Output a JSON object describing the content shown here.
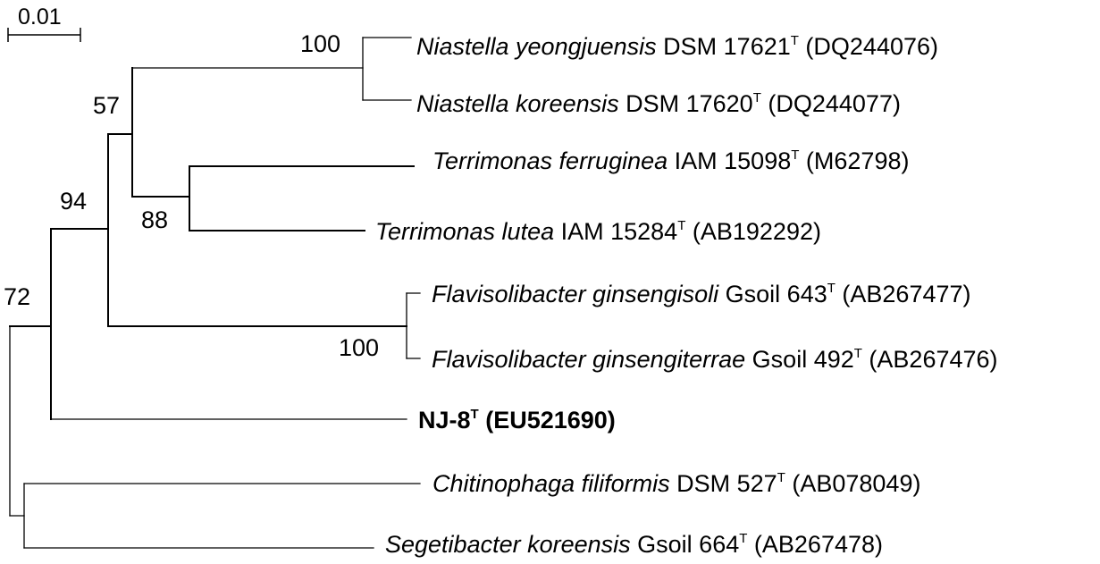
{
  "scale_bar": {
    "label": "0.01"
  },
  "support_values": {
    "n1": "100",
    "n2": "57",
    "n3": "88",
    "n4": "94",
    "n5": "100",
    "n6": "72"
  },
  "taxa": [
    {
      "italic": "Niastella yeongjuensis",
      "rest": " DSM 17621",
      "sup": "T",
      "acc": " (DQ244076)"
    },
    {
      "italic": "Niastella koreensis",
      "rest": " DSM 17620",
      "sup": "T",
      "acc": " (DQ244077)"
    },
    {
      "italic": "Terrimonas ferruginea",
      "rest": " IAM 15098",
      "sup": "T",
      "acc": " (M62798)"
    },
    {
      "italic": "Terrimonas lutea",
      "rest": " IAM 15284",
      "sup": "T",
      "acc": " (AB192292)"
    },
    {
      "italic": "Flavisolibacter ginsengisoli",
      "rest": " Gsoil 643",
      "sup": "T",
      "acc": " (AB267477)"
    },
    {
      "italic": "Flavisolibacter ginsengiterrae",
      "rest": " Gsoil 492",
      "sup": "T",
      "acc": " (AB267476)"
    },
    {
      "bold": "NJ-8",
      "sup": "T",
      "acc": " (EU521690)"
    },
    {
      "italic": "Chitinophaga filiformis",
      "rest": " DSM 527",
      "sup": "T",
      "acc": " (AB078049)"
    },
    {
      "italic": "Segetibacter koreensis",
      "rest": " Gsoil 664",
      "sup": "T",
      "acc": " (AB267478)"
    }
  ]
}
